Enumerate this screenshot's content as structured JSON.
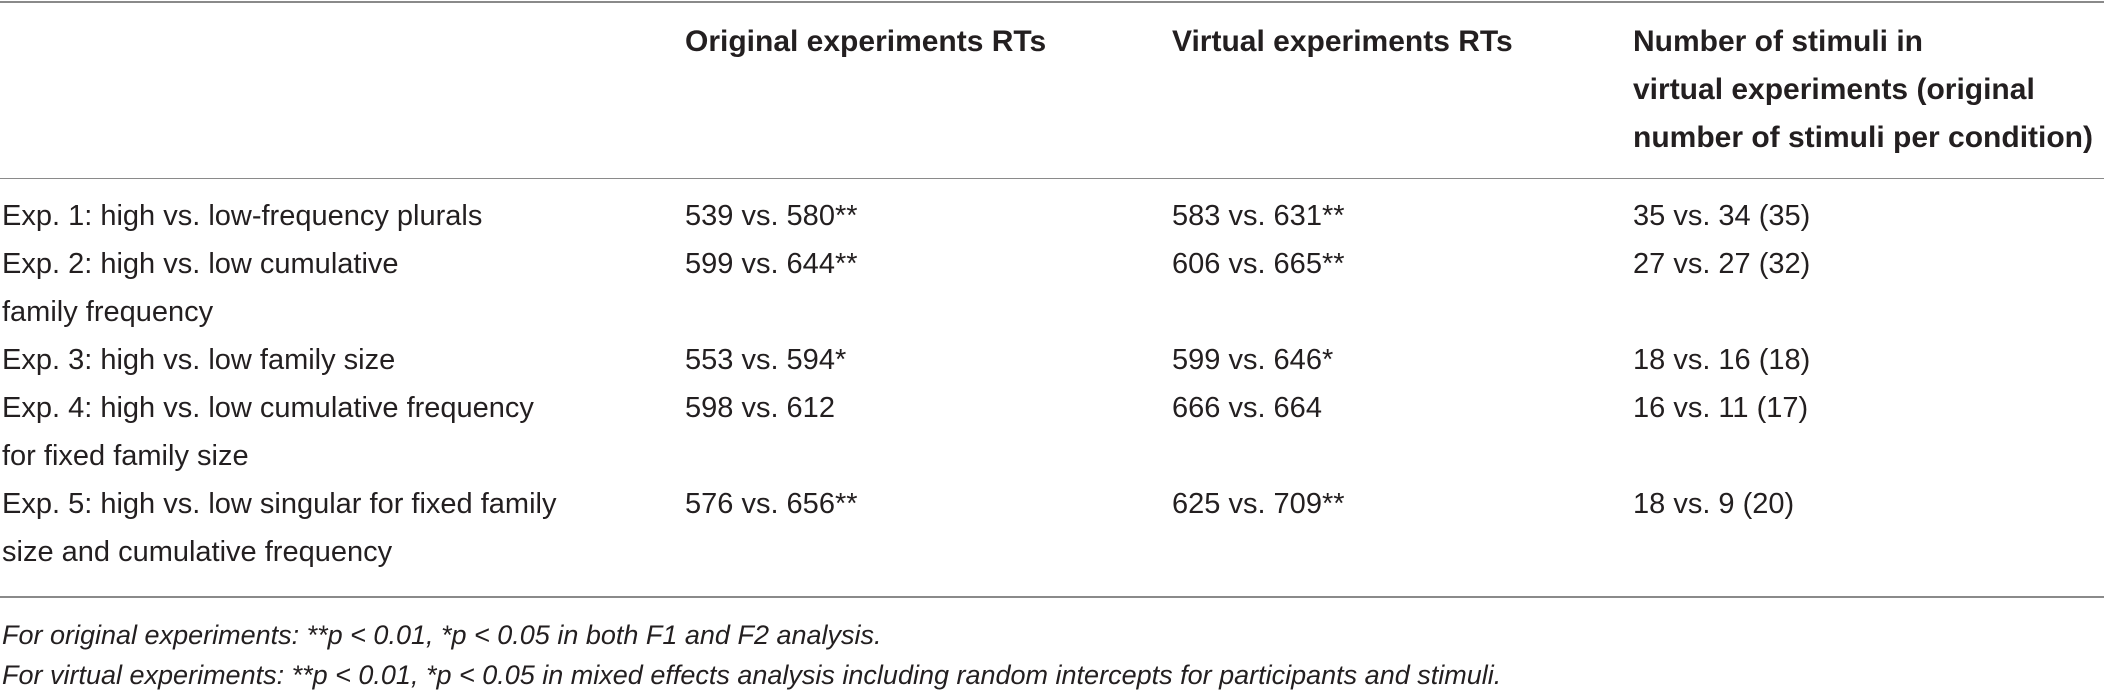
{
  "table": {
    "headers": [
      "",
      "Original experiments RTs",
      "Virtual experiments RTs",
      [
        "Number of stimuli in",
        "virtual experiments (original",
        "number of stimuli per condition)"
      ]
    ],
    "rows": [
      {
        "label": [
          "Exp. 1: high vs. low-frequency plurals"
        ],
        "original": "539 vs. 580**",
        "virtual": "583 vs. 631**",
        "stimuli": "35 vs. 34 (35)"
      },
      {
        "label": [
          "Exp. 2: high vs. low cumulative",
          "family frequency"
        ],
        "original": "599 vs. 644**",
        "virtual": "606 vs. 665**",
        "stimuli": "27 vs. 27 (32)"
      },
      {
        "label": [
          "Exp. 3: high vs. low family size"
        ],
        "original": "553 vs. 594*",
        "virtual": "599 vs. 646*",
        "stimuli": "18 vs. 16 (18)"
      },
      {
        "label": [
          "Exp. 4: high vs. low cumulative frequency",
          "for fixed family size"
        ],
        "original": "598 vs. 612",
        "virtual": "666 vs. 664",
        "stimuli": "16 vs. 11 (17)"
      },
      {
        "label": [
          "Exp. 5: high vs. low singular for fixed family",
          "size and cumulative frequency"
        ],
        "original": "576 vs. 656**",
        "virtual": "625 vs. 709**",
        "stimuli": "18 vs. 9 (20)"
      }
    ],
    "footnotes": [
      "For original experiments: **p < 0.01,  *p < 0.05 in both F1 and F2 analysis.",
      "For virtual experiments: **p < 0.01,  *p < 0.05 in mixed effects analysis including random intercepts for participants and stimuli."
    ]
  }
}
